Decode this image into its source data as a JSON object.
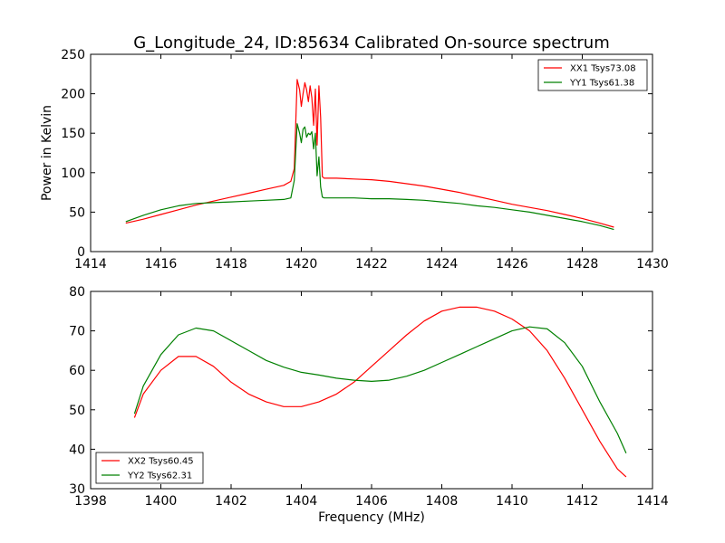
{
  "chart_data": [
    {
      "type": "line",
      "title": "G_Longitude_24, ID:85634 Calibrated On-source spectrum",
      "xlabel": "",
      "ylabel": "Power in Kelvin",
      "xlim": [
        1414,
        1430
      ],
      "ylim": [
        0,
        250
      ],
      "xticks": [
        1414,
        1416,
        1418,
        1420,
        1422,
        1424,
        1426,
        1428,
        1430
      ],
      "yticks": [
        0,
        50,
        100,
        150,
        200,
        250
      ],
      "legend_position": "upper right",
      "grid": false,
      "series": [
        {
          "name": "XX1 Tsys73.08",
          "color": "#ff0000",
          "x": [
            1415.0,
            1415.5,
            1416.0,
            1416.5,
            1417.0,
            1417.5,
            1418.0,
            1418.5,
            1419.0,
            1419.5,
            1419.7,
            1419.8,
            1419.88,
            1419.95,
            1420.0,
            1420.05,
            1420.1,
            1420.15,
            1420.2,
            1420.25,
            1420.3,
            1420.35,
            1420.4,
            1420.45,
            1420.5,
            1420.55,
            1420.6,
            1420.65,
            1421.0,
            1421.5,
            1422.0,
            1422.5,
            1423.0,
            1423.5,
            1424.0,
            1424.5,
            1425.0,
            1425.5,
            1426.0,
            1426.5,
            1427.0,
            1427.5,
            1428.0,
            1428.5,
            1428.9
          ],
          "y": [
            36,
            41,
            47,
            53,
            59,
            64,
            69,
            74,
            79,
            84,
            89,
            105,
            218,
            205,
            184,
            200,
            214,
            205,
            190,
            210,
            195,
            160,
            206,
            135,
            210,
            170,
            95,
            93,
            93,
            92,
            91,
            89,
            86,
            83,
            79,
            75,
            70,
            65,
            60,
            56,
            52,
            47,
            42,
            36,
            31
          ]
        },
        {
          "name": "YY1 Tsys61.38",
          "color": "#008000",
          "x": [
            1415.0,
            1415.5,
            1416.0,
            1416.5,
            1417.0,
            1417.5,
            1418.0,
            1418.5,
            1419.0,
            1419.5,
            1419.7,
            1419.8,
            1419.88,
            1419.95,
            1420.0,
            1420.05,
            1420.1,
            1420.15,
            1420.2,
            1420.25,
            1420.3,
            1420.35,
            1420.4,
            1420.45,
            1420.5,
            1420.55,
            1420.6,
            1420.65,
            1421.0,
            1421.5,
            1422.0,
            1422.5,
            1423.0,
            1423.5,
            1424.0,
            1424.5,
            1425.0,
            1425.5,
            1426.0,
            1426.5,
            1427.0,
            1427.5,
            1428.0,
            1428.5,
            1428.9
          ],
          "y": [
            38,
            46,
            53,
            58,
            61,
            62,
            63,
            64,
            65,
            66,
            68,
            90,
            162,
            150,
            138,
            155,
            158,
            145,
            150,
            148,
            152,
            130,
            150,
            96,
            120,
            82,
            69,
            68,
            68,
            68,
            67,
            67,
            66,
            65,
            63,
            61,
            58,
            56,
            53,
            50,
            46,
            42,
            38,
            33,
            28
          ]
        }
      ]
    },
    {
      "type": "line",
      "title": "",
      "xlabel": "Frequency (MHz)",
      "ylabel": "",
      "xlim": [
        1398,
        1414
      ],
      "ylim": [
        30,
        80
      ],
      "xticks": [
        1398,
        1400,
        1402,
        1404,
        1406,
        1408,
        1410,
        1412,
        1414
      ],
      "yticks": [
        30,
        40,
        50,
        60,
        70,
        80
      ],
      "legend_position": "lower left",
      "grid": false,
      "series": [
        {
          "name": "XX2 Tsys60.45",
          "color": "#ff0000",
          "x": [
            1399.25,
            1399.5,
            1400.0,
            1400.5,
            1401.0,
            1401.5,
            1402.0,
            1402.5,
            1403.0,
            1403.5,
            1404.0,
            1404.5,
            1405.0,
            1405.5,
            1406.0,
            1406.5,
            1407.0,
            1407.5,
            1408.0,
            1408.5,
            1409.0,
            1409.5,
            1410.0,
            1410.5,
            1411.0,
            1411.5,
            1412.0,
            1412.5,
            1413.0,
            1413.25
          ],
          "y": [
            48,
            54,
            60,
            63.5,
            63.5,
            61,
            57,
            54,
            52,
            50.8,
            50.8,
            52,
            54,
            57,
            61,
            65,
            69,
            72.5,
            75,
            76,
            76,
            75,
            73,
            70,
            65,
            58,
            50,
            42,
            35,
            33
          ]
        },
        {
          "name": "YY2 Tsys62.31",
          "color": "#008000",
          "x": [
            1399.25,
            1399.5,
            1400.0,
            1400.5,
            1401.0,
            1401.5,
            1402.0,
            1402.5,
            1403.0,
            1403.5,
            1404.0,
            1404.5,
            1405.0,
            1405.5,
            1406.0,
            1406.5,
            1407.0,
            1407.5,
            1408.0,
            1408.5,
            1409.0,
            1409.5,
            1410.0,
            1410.5,
            1411.0,
            1411.5,
            1412.0,
            1412.5,
            1413.0,
            1413.25
          ],
          "y": [
            49,
            56,
            64,
            69,
            70.7,
            70,
            67.5,
            65,
            62.5,
            60.8,
            59.5,
            58.8,
            58,
            57.5,
            57.2,
            57.5,
            58.5,
            60,
            62,
            64,
            66,
            68,
            70,
            71,
            70.5,
            67,
            61,
            52,
            44,
            39
          ]
        }
      ]
    }
  ]
}
